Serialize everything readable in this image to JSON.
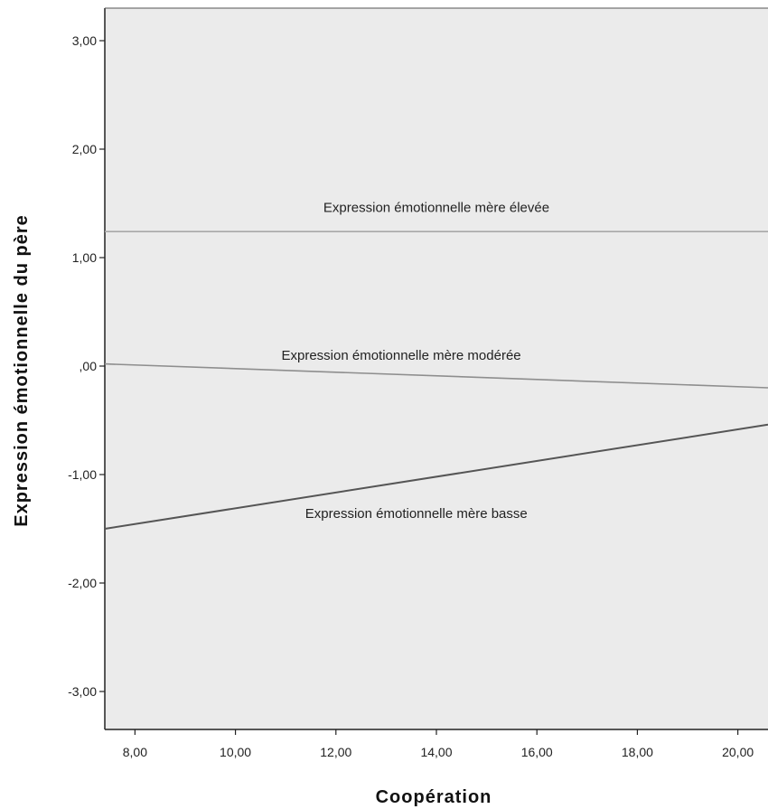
{
  "chart_data": {
    "type": "line",
    "title": "",
    "xlabel": "Coopération",
    "ylabel": "Expression émotionnelle du père",
    "xlim": [
      7.4,
      20.6
    ],
    "ylim": [
      -3.35,
      3.3
    ],
    "x_ticks": [
      8,
      10,
      12,
      14,
      16,
      18,
      20
    ],
    "x_tick_labels": [
      "8,00",
      "10,00",
      "12,00",
      "14,00",
      "16,00",
      "18,00",
      "20,00"
    ],
    "y_ticks": [
      3,
      2,
      1,
      0,
      -1,
      -2,
      -3
    ],
    "y_tick_labels": [
      "3,00",
      "2,00",
      "1,00",
      ",00",
      "-1,00",
      "-2,00",
      "-3,00"
    ],
    "grid": false,
    "legend": "none",
    "background_color": "#ebebeb",
    "series": [
      {
        "name": "Expression émotionnelle mère élevée",
        "x": [
          7.4,
          20.6
        ],
        "y": [
          1.24,
          1.24
        ],
        "color": "#a8a8a8",
        "label_x": 14.0,
        "label_y": 1.42
      },
      {
        "name": "Expression émotionnelle mère modérée",
        "x": [
          7.4,
          20.6
        ],
        "y": [
          0.02,
          -0.2
        ],
        "color": "#8e8e8e",
        "label_x": 13.3,
        "label_y": 0.06
      },
      {
        "name": "Expression émotionnelle mère basse",
        "x": [
          7.4,
          20.6
        ],
        "y": [
          -1.5,
          -0.54
        ],
        "color": "#555555",
        "label_x": 13.6,
        "label_y": -1.4
      }
    ]
  }
}
